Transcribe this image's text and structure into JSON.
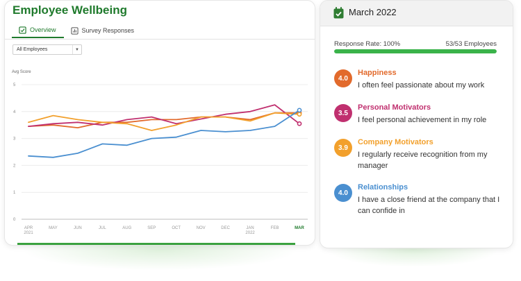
{
  "app": {
    "title": "Employee Wellbeing"
  },
  "tabs": [
    {
      "label": "Overview",
      "icon": "overview-icon",
      "active": true
    },
    {
      "label": "Survey Responses",
      "icon": "bar-chart-icon",
      "active": false
    }
  ],
  "filter": {
    "selected": "All Employees"
  },
  "chart_data": {
    "type": "line",
    "ylabel": "Avg Score",
    "ylim": [
      0,
      5
    ],
    "yticks": [
      "0",
      "1",
      "2",
      "3",
      "4",
      "5"
    ],
    "grid": true,
    "x": [
      "APR",
      "MAY",
      "JUN",
      "JUL",
      "AUG",
      "SEP",
      "OCT",
      "NOV",
      "DEC",
      "JAN",
      "FEB",
      "MAR"
    ],
    "x_sublabels": [
      "2021",
      "",
      "",
      "",
      "",
      "",
      "",
      "",
      "",
      "2022",
      "",
      ""
    ],
    "highlight_index": 11,
    "series": [
      {
        "color": "#e26a2c",
        "values": [
          3.45,
          3.5,
          3.4,
          3.6,
          3.6,
          3.7,
          3.7,
          3.8,
          3.8,
          3.7,
          3.95,
          3.95
        ]
      },
      {
        "color": "#c0306f",
        "values": [
          3.45,
          3.55,
          3.6,
          3.5,
          3.7,
          3.8,
          3.55,
          null,
          3.9,
          4.0,
          4.25,
          3.55
        ]
      },
      {
        "color": "#f2a02c",
        "values": [
          3.6,
          3.85,
          3.7,
          3.6,
          3.55,
          3.3,
          3.5,
          3.8,
          3.8,
          3.65,
          3.95,
          3.9
        ]
      },
      {
        "color": "#4a8fd0",
        "values": [
          2.35,
          2.3,
          2.45,
          2.8,
          2.75,
          3.0,
          3.05,
          3.3,
          3.25,
          3.3,
          3.45,
          4.05
        ]
      }
    ]
  },
  "panel": {
    "month": "March 2022",
    "response_rate_label": "Response Rate: 100%",
    "response_count": "53/53 Employees",
    "response_fraction": 1.0,
    "metrics": [
      {
        "score": "4.0",
        "title": "Happiness",
        "desc": "I often feel passionate about my work",
        "color": "#e26a2c"
      },
      {
        "score": "3.5",
        "title": "Personal Motivators",
        "desc": "I feel personal achievement in my role",
        "color": "#c0306f"
      },
      {
        "score": "3.9",
        "title": "Company Motivators",
        "desc": "I regularly receive recognition from my manager",
        "color": "#f2a02c"
      },
      {
        "score": "4.0",
        "title": "Relationships",
        "desc": "I have a close friend at the company that I can confide in",
        "color": "#4a8fd0"
      }
    ]
  }
}
